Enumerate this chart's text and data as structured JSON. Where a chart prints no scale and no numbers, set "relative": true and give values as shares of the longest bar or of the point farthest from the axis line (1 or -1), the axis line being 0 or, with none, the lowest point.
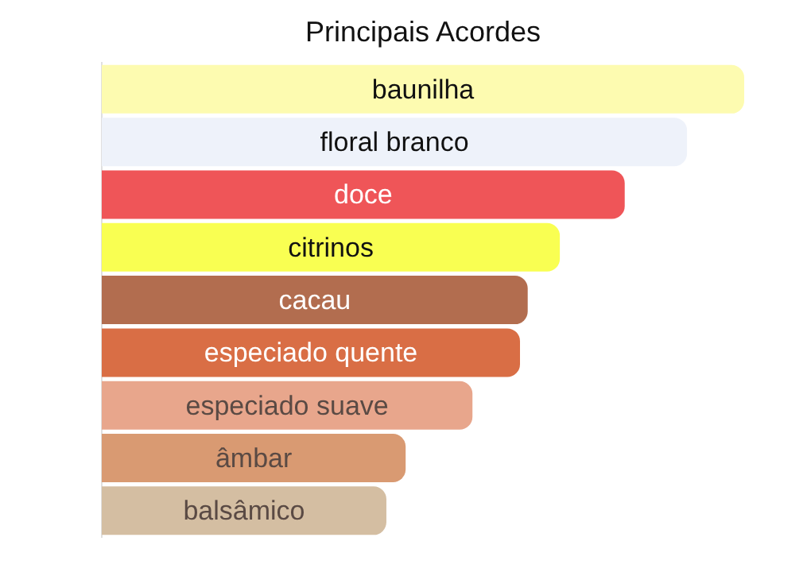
{
  "chart_data": {
    "type": "bar",
    "title": "Principais Acordes",
    "orientation": "horizontal",
    "relative": true,
    "categories": [
      "baunilha",
      "floral branco",
      "doce",
      "citrinos",
      "cacau",
      "especiado quente",
      "especiado suave",
      "âmbar",
      "balsâmico"
    ],
    "values": [
      1,
      0.911,
      0.814,
      0.713,
      0.663,
      0.651,
      0.577,
      0.473,
      0.443
    ],
    "colors": [
      "#fdfbb0",
      "#eef2fa",
      "#ef5558",
      "#f9ff52",
      "#b26d4f",
      "#d96e45",
      "#e8a68c",
      "#d99a72",
      "#d4bea2"
    ]
  }
}
